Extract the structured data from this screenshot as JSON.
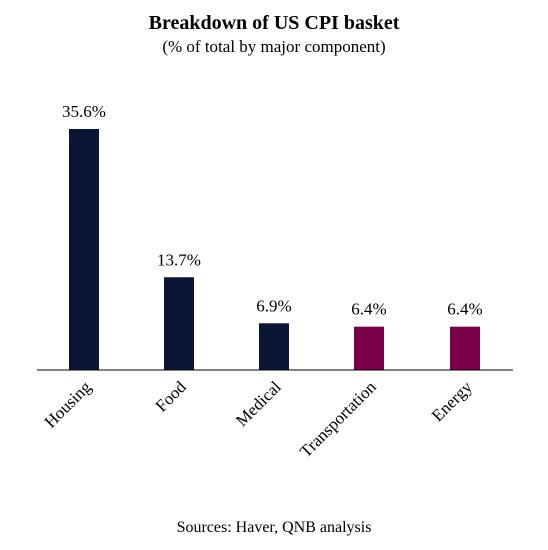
{
  "chart_data": {
    "type": "bar",
    "title": "Breakdown of US CPI basket",
    "subtitle": "(% of total by major component)",
    "categories": [
      "Housing",
      "Food",
      "Medical",
      "Transportation",
      "Energy"
    ],
    "values": [
      35.6,
      13.7,
      6.9,
      6.4,
      6.4
    ],
    "data_labels": [
      "35.6%",
      "13.7%",
      "6.9%",
      "6.4%",
      "6.4%"
    ],
    "bar_colors": [
      "#0b1535",
      "#0b1535",
      "#0b1535",
      "#7a0049",
      "#7a0049"
    ],
    "xlabel": "",
    "ylabel": "",
    "ylim": [
      0,
      37
    ],
    "grid": false,
    "legend": "none",
    "source": "Sources: Haver, QNB analysis"
  }
}
